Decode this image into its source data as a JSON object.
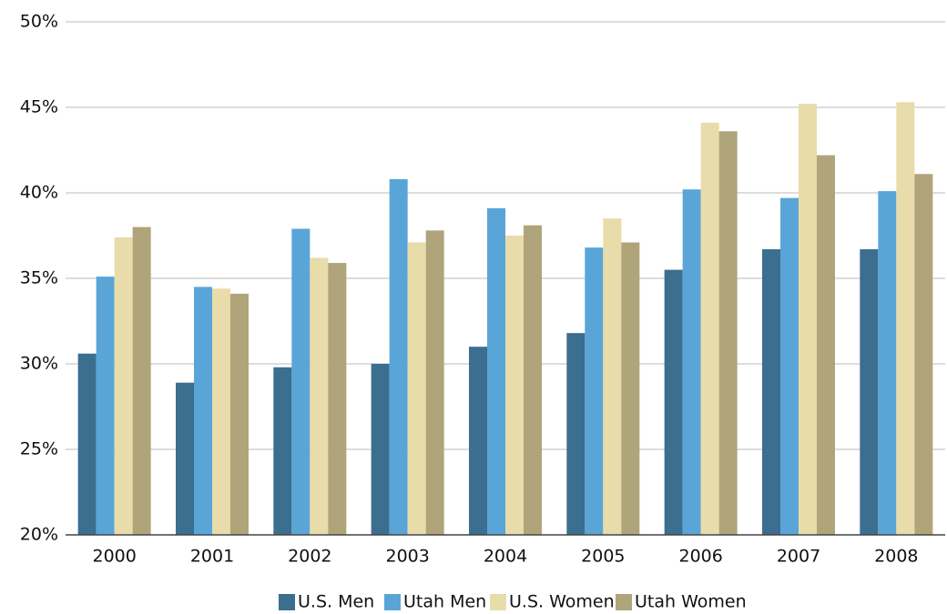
{
  "chart_data": {
    "type": "bar",
    "categories": [
      "2000",
      "2001",
      "2002",
      "2003",
      "2004",
      "2005",
      "2006",
      "2007",
      "2008"
    ],
    "series": [
      {
        "name": "U.S. Men",
        "color": "#3b6e8f",
        "values": [
          30.6,
          28.9,
          29.8,
          30.0,
          31.0,
          31.8,
          35.5,
          36.7,
          36.7
        ]
      },
      {
        "name": "Utah Men",
        "color": "#5aa5d8",
        "values": [
          35.1,
          34.5,
          37.9,
          40.8,
          39.1,
          36.8,
          40.2,
          39.7,
          40.1
        ]
      },
      {
        "name": "U.S. Women",
        "color": "#e8dcaa",
        "values": [
          37.4,
          34.4,
          36.2,
          37.1,
          37.5,
          38.5,
          44.1,
          45.2,
          45.3
        ]
      },
      {
        "name": "Utah Women",
        "color": "#b0a47a",
        "values": [
          38.0,
          34.1,
          35.9,
          37.8,
          38.1,
          37.1,
          43.6,
          42.2,
          41.1
        ]
      }
    ],
    "ylim": [
      20,
      50
    ],
    "yticks": [
      {
        "value": 20,
        "label": "20%"
      },
      {
        "value": 25,
        "label": "25%"
      },
      {
        "value": 30,
        "label": "30%"
      },
      {
        "value": 35,
        "label": "35%"
      },
      {
        "value": 40,
        "label": "40%"
      },
      {
        "value": 45,
        "label": "45%"
      },
      {
        "value": 50,
        "label": "50%"
      }
    ],
    "grid": true,
    "legend": "bottom"
  }
}
